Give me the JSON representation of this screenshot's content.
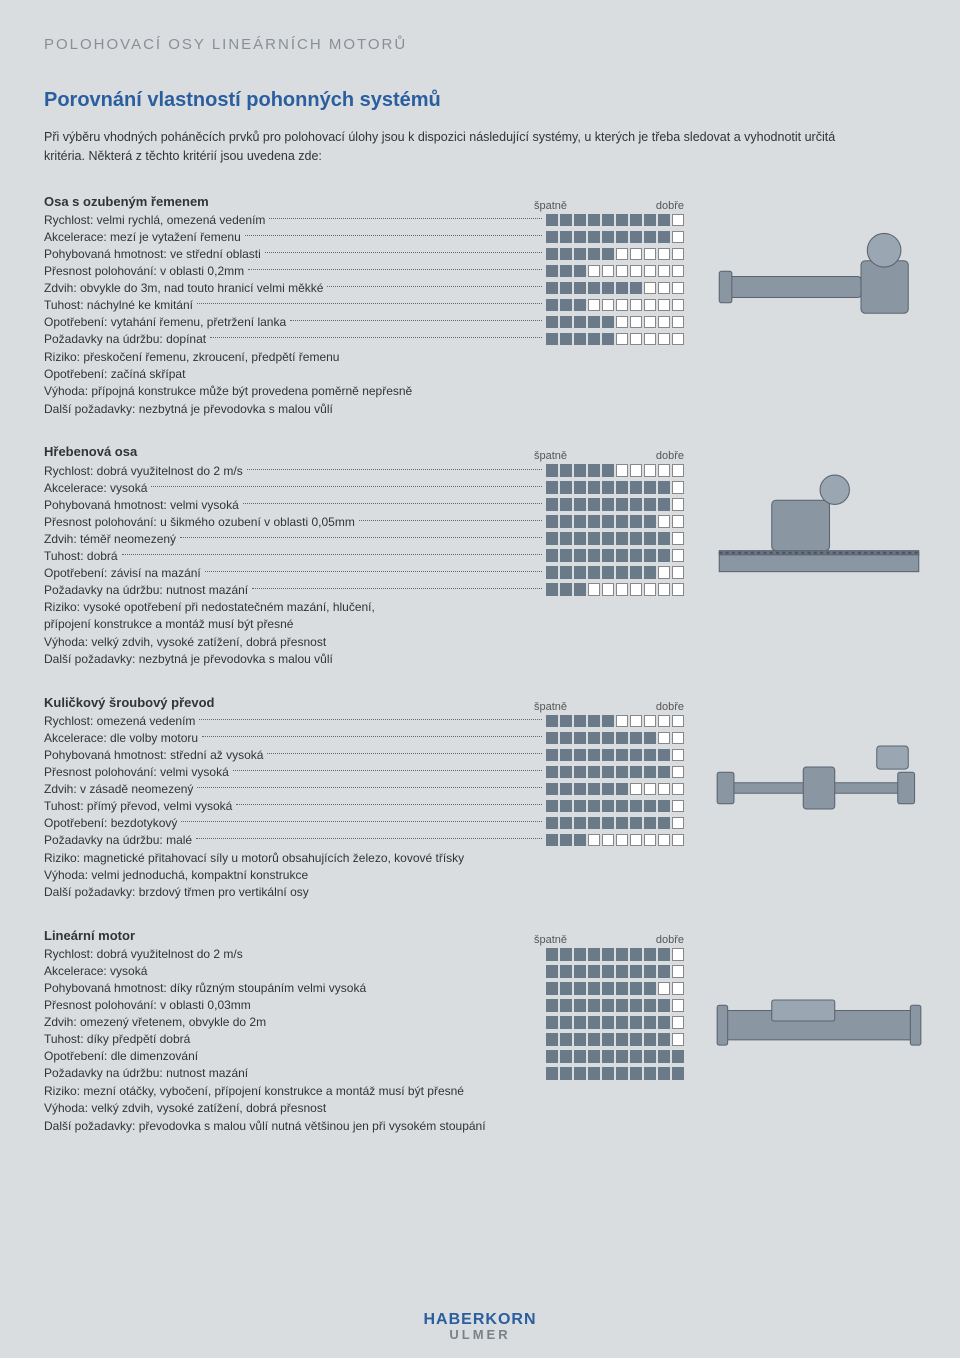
{
  "header": "POLOHOVACÍ OSY LINEÁRNÍCH MOTORŮ",
  "title": "Porovnání vlastností pohonných systémů",
  "intro": "Při výběru vhodných poháněcích prvků pro polohovací úlohy jsou k dispozici následující systémy, u kterých je třeba sledovat a vyhodnotit určitá kritéria. Některá z těchto kritérií jsou uvedena zde:",
  "legend_bad": "špatně",
  "legend_good": "dobře",
  "sections": [
    {
      "title": "Osa s ozubeným řemenem",
      "rows": [
        {
          "label": "Rychlost: velmi rychlá, omezená vedením",
          "rating": 9,
          "dots": true
        },
        {
          "label": "Akcelerace: mezí je vytažení řemenu",
          "rating": 9,
          "dots": true
        },
        {
          "label": "Pohybovaná hmotnost: ve střední oblasti",
          "rating": 5,
          "dots": true
        },
        {
          "label": "Přesnost polohování: v oblasti 0,2mm",
          "rating": 3,
          "dots": true
        },
        {
          "label": "Zdvih: obvykle do 3m, nad touto hranicí velmi měkké",
          "rating": 7,
          "dots": true
        },
        {
          "label": "Tuhost: náchylné ke kmitání",
          "rating": 3,
          "dots": true
        },
        {
          "label": "Opotřebení: vytahání řemenu, přetržení lanka",
          "rating": 5,
          "dots": true
        },
        {
          "label": "Požadavky na údržbu: dopínat",
          "rating": 5,
          "dots": true
        }
      ],
      "notes": [
        "Riziko: přeskočení řemenu, zkroucení, předpětí řemenu",
        "Opotřebení: začíná skřípat",
        "Výhoda: přípojná konstrukce může být provedena poměrně nepřesně",
        "Další požadavky: nezbytná je převodovka s malou vůlí"
      ]
    },
    {
      "title": "Hřebenová osa",
      "rows": [
        {
          "label": "Rychlost: dobrá využitelnost do 2 m/s",
          "rating": 5,
          "dots": true
        },
        {
          "label": "Akcelerace: vysoká",
          "rating": 9,
          "dots": true
        },
        {
          "label": "Pohybovaná hmotnost: velmi vysoká",
          "rating": 9,
          "dots": true
        },
        {
          "label": "Přesnost polohování: u šikmého ozubení v oblasti 0,05mm",
          "rating": 8,
          "dots": true
        },
        {
          "label": "Zdvih: téměř neomezený",
          "rating": 9,
          "dots": true
        },
        {
          "label": "Tuhost: dobrá",
          "rating": 9,
          "dots": true
        },
        {
          "label": "Opotřebení: závisí na mazání",
          "rating": 8,
          "dots": true
        },
        {
          "label": "Požadavky na údržbu: nutnost mazání",
          "rating": 3,
          "dots": true
        }
      ],
      "notes": [
        "Riziko: vysoké opotřebení při nedostatečném mazání, hlučení,",
        "přípojení konstrukce a montáž musí být přesné",
        "Výhoda: velký zdvih, vysoké zatížení, dobrá přesnost",
        "Další požadavky: nezbytná je převodovka s malou vůlí"
      ]
    },
    {
      "title": "Kuličkový šroubový převod",
      "rows": [
        {
          "label": "Rychlost: omezená vedením",
          "rating": 5,
          "dots": true
        },
        {
          "label": "Akcelerace: dle volby motoru",
          "rating": 8,
          "dots": true
        },
        {
          "label": "Pohybovaná hmotnost: střední až vysoká",
          "rating": 9,
          "dots": true
        },
        {
          "label": "Přesnost polohování: velmi vysoká",
          "rating": 9,
          "dots": true
        },
        {
          "label": "Zdvih: v zásadě neomezený",
          "rating": 6,
          "dots": true
        },
        {
          "label": "Tuhost: přímý převod, velmi vysoká",
          "rating": 9,
          "dots": true
        },
        {
          "label": "Opotřebení: bezdotykový",
          "rating": 9,
          "dots": true
        },
        {
          "label": "Požadavky na údržbu: malé",
          "rating": 3,
          "dots": true
        }
      ],
      "notes": [
        "Riziko: magnetické přitahovací síly u motorů obsahujících železo, kovové třísky",
        "Výhoda: velmi jednoduchá, kompaktní konstrukce",
        "Další požadavky: brzdový třmen pro vertikální osy"
      ]
    },
    {
      "title": "Lineární motor",
      "rows": [
        {
          "label": "Rychlost: dobrá využitelnost do 2 m/s",
          "rating": 9,
          "dots": false
        },
        {
          "label": "Akcelerace: vysoká",
          "rating": 9,
          "dots": false
        },
        {
          "label": "Pohybovaná hmotnost: díky různým stoupáním velmi vysoká",
          "rating": 8,
          "dots": false
        },
        {
          "label": "Přesnost polohování: v oblasti 0,03mm",
          "rating": 9,
          "dots": false
        },
        {
          "label": "Zdvih: omezený vřetenem, obvykle do 2m",
          "rating": 9,
          "dots": false
        },
        {
          "label": "Tuhost: díky předpětí dobrá",
          "rating": 9,
          "dots": false
        },
        {
          "label": "Opotřebení: dle dimenzování",
          "rating": 10,
          "dots": false
        },
        {
          "label": "Požadavky na údržbu: nutnost mazání",
          "rating": 10,
          "dots": false
        }
      ],
      "notes": [
        "Riziko: mezní otáčky, vybočení, přípojení konstrukce a montáž musí být přesné",
        "Výhoda: velký zdvih, vysoké zatížení, dobrá přesnost",
        "Další požadavky: převodovka s malou vůlí nutná většinou jen při vysokém stoupání"
      ]
    }
  ],
  "logo": {
    "line1": "HABERKORN",
    "line2": "ULMER"
  },
  "colors": {
    "filled": "#6a7a88",
    "empty_border": "#888",
    "empty_bg": "#ffffff",
    "title": "#2a5e9e",
    "bg": "#d9dde0"
  }
}
